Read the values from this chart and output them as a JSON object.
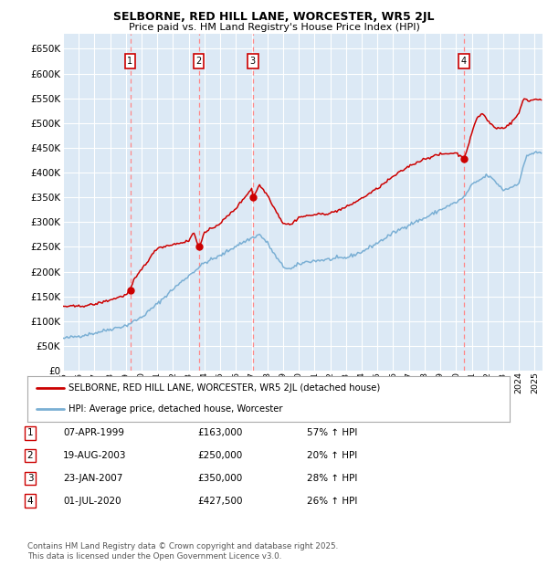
{
  "title": "SELBORNE, RED HILL LANE, WORCESTER, WR5 2JL",
  "subtitle": "Price paid vs. HM Land Registry's House Price Index (HPI)",
  "ylim": [
    0,
    680000
  ],
  "yticks": [
    0,
    50000,
    100000,
    150000,
    200000,
    250000,
    300000,
    350000,
    400000,
    450000,
    500000,
    550000,
    600000,
    650000
  ],
  "xlim_start": 1995.0,
  "xlim_end": 2025.5,
  "bg_color": "#dce9f5",
  "grid_color": "#ffffff",
  "sale_dates": [
    1999.27,
    2003.63,
    2007.07,
    2020.5
  ],
  "sale_prices": [
    163000,
    250000,
    350000,
    427500
  ],
  "sale_labels": [
    "1",
    "2",
    "3",
    "4"
  ],
  "legend_label_red": "SELBORNE, RED HILL LANE, WORCESTER, WR5 2JL (detached house)",
  "legend_label_blue": "HPI: Average price, detached house, Worcester",
  "table_rows": [
    [
      "1",
      "07-APR-1999",
      "£163,000",
      "57% ↑ HPI"
    ],
    [
      "2",
      "19-AUG-2003",
      "£250,000",
      "20% ↑ HPI"
    ],
    [
      "3",
      "23-JAN-2007",
      "£350,000",
      "28% ↑ HPI"
    ],
    [
      "4",
      "01-JUL-2020",
      "£427,500",
      "26% ↑ HPI"
    ]
  ],
  "footnote": "Contains HM Land Registry data © Crown copyright and database right 2025.\nThis data is licensed under the Open Government Licence v3.0.",
  "red_color": "#cc0000",
  "blue_color": "#7aafd4",
  "dot_color": "#cc0000",
  "vline_color": "#ff8888"
}
